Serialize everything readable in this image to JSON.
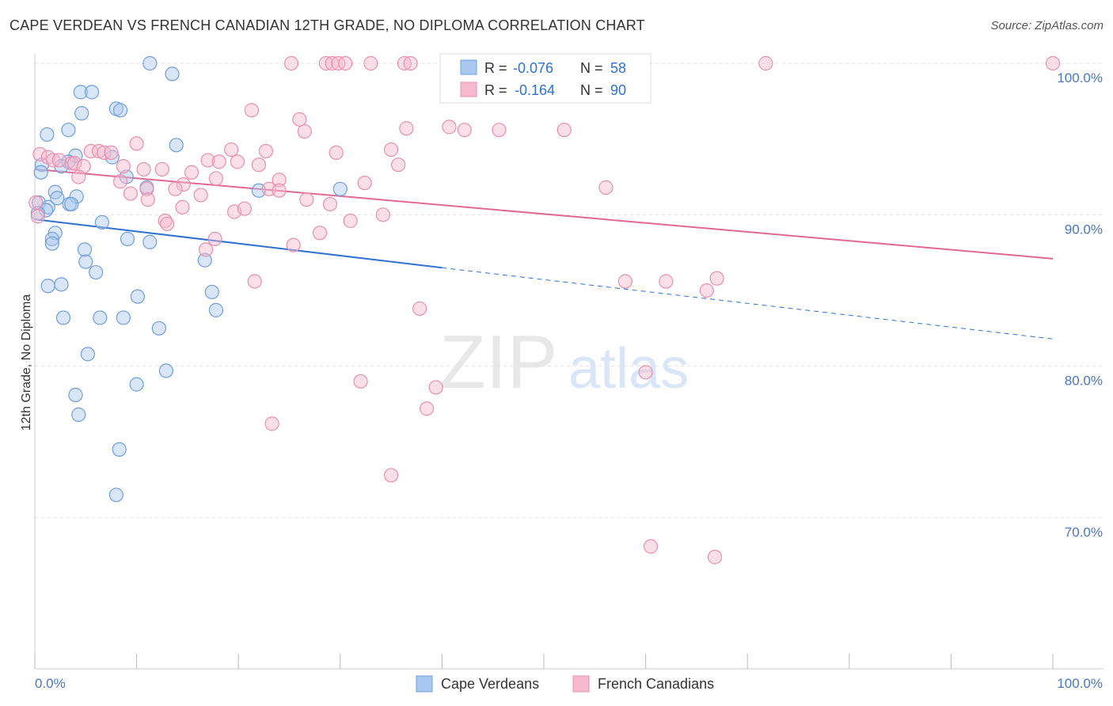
{
  "title": "CAPE VERDEAN VS FRENCH CANADIAN 12TH GRADE, NO DIPLOMA CORRELATION CHART",
  "source": "Source: ZipAtlas.com",
  "watermark": {
    "zip": "ZIP",
    "atlas": "atlas"
  },
  "colors": {
    "blue_fill": "#a9c8f0",
    "blue_stroke": "#6f9fdc",
    "blue_line": "#2f72d0",
    "pink_fill": "#f6b9cd",
    "pink_stroke": "#e98fb0",
    "pink_line": "#e06892",
    "axis_label_color": "#4a78c2",
    "grid": "#e3e3e3"
  },
  "chart_data": {
    "type": "scatter",
    "title": "CAPE VERDEAN VS FRENCH CANADIAN 12TH GRADE, NO DIPLOMA CORRELATION CHART",
    "xlabel": "",
    "ylabel": "12th Grade, No Diploma",
    "xlim": [
      0,
      100
    ],
    "ylim": [
      60,
      100
    ],
    "x_tick_labels": [
      "0.0%",
      "100.0%"
    ],
    "y_ticks": [
      {
        "value": 100,
        "label": "100.0%"
      },
      {
        "value": 90,
        "label": "90.0%"
      },
      {
        "value": 80,
        "label": "80.0%"
      },
      {
        "value": 70,
        "label": "70.0%"
      }
    ],
    "grid": true,
    "legend_position": "bottom",
    "stats_legend": [
      {
        "r_label": "R =",
        "r_value": "-0.076",
        "n_label": "N =",
        "n_value": "58"
      },
      {
        "r_label": "R =",
        "r_value": "-0.164",
        "n_label": "N =",
        "n_value": "90"
      }
    ],
    "series": [
      {
        "name": "Cape Verdeans",
        "color": "blue",
        "trend": {
          "x0": 0,
          "y0": 89.7,
          "x1": 40,
          "y1": 86.5,
          "dash_x1": 100,
          "dash_y1": 81.8
        },
        "points": [
          [
            11.3,
            100.0
          ],
          [
            13.5,
            99.3
          ],
          [
            4.5,
            98.1
          ],
          [
            5.6,
            98.1
          ],
          [
            8.0,
            97.0
          ],
          [
            8.4,
            96.9
          ],
          [
            4.6,
            96.7
          ],
          [
            1.2,
            95.3
          ],
          [
            3.3,
            95.6
          ],
          [
            13.9,
            94.6
          ],
          [
            4.0,
            93.9
          ],
          [
            7.6,
            93.8
          ],
          [
            3.3,
            93.5
          ],
          [
            0.7,
            93.3
          ],
          [
            2.6,
            93.2
          ],
          [
            0.6,
            92.8
          ],
          [
            9.0,
            92.5
          ],
          [
            11.0,
            91.8
          ],
          [
            2.0,
            91.5
          ],
          [
            22.0,
            91.6
          ],
          [
            30.0,
            91.7
          ],
          [
            4.1,
            91.2
          ],
          [
            2.2,
            91.1
          ],
          [
            0.4,
            90.8
          ],
          [
            3.4,
            90.7
          ],
          [
            3.6,
            90.7
          ],
          [
            1.3,
            90.5
          ],
          [
            1.1,
            90.3
          ],
          [
            0.3,
            90.1
          ],
          [
            6.6,
            89.5
          ],
          [
            2.0,
            88.8
          ],
          [
            1.7,
            88.4
          ],
          [
            1.7,
            88.1
          ],
          [
            9.1,
            88.4
          ],
          [
            11.3,
            88.2
          ],
          [
            4.9,
            87.7
          ],
          [
            5.0,
            86.9
          ],
          [
            16.7,
            87.0
          ],
          [
            6.0,
            86.2
          ],
          [
            1.3,
            85.3
          ],
          [
            2.6,
            85.4
          ],
          [
            17.4,
            84.9
          ],
          [
            10.1,
            84.6
          ],
          [
            17.8,
            83.7
          ],
          [
            2.8,
            83.2
          ],
          [
            6.4,
            83.2
          ],
          [
            8.7,
            83.2
          ],
          [
            12.2,
            82.5
          ],
          [
            5.2,
            80.8
          ],
          [
            12.9,
            79.7
          ],
          [
            10.0,
            78.8
          ],
          [
            4.0,
            78.1
          ],
          [
            4.3,
            76.8
          ],
          [
            8.3,
            74.5
          ],
          [
            8.0,
            71.5
          ]
        ]
      },
      {
        "name": "French Canadians",
        "color": "pink",
        "trend": {
          "x0": 0,
          "y0": 93.0,
          "x1": 100,
          "y1": 87.1
        },
        "points": [
          [
            25.2,
            100.0
          ],
          [
            28.6,
            100.0
          ],
          [
            29.2,
            100.0
          ],
          [
            29.8,
            100.0
          ],
          [
            30.5,
            100.0
          ],
          [
            33.0,
            100.0
          ],
          [
            36.3,
            100.0
          ],
          [
            36.9,
            100.0
          ],
          [
            48.2,
            100.0
          ],
          [
            71.8,
            100.0
          ],
          [
            100.0,
            100.0
          ],
          [
            21.3,
            96.9
          ],
          [
            26.0,
            96.3
          ],
          [
            26.5,
            95.5
          ],
          [
            36.5,
            95.7
          ],
          [
            40.7,
            95.8
          ],
          [
            42.2,
            95.6
          ],
          [
            10.0,
            94.7
          ],
          [
            19.3,
            94.3
          ],
          [
            22.7,
            94.2
          ],
          [
            29.6,
            94.1
          ],
          [
            35.0,
            94.3
          ],
          [
            0.5,
            94.0
          ],
          [
            5.5,
            94.2
          ],
          [
            6.3,
            94.2
          ],
          [
            6.8,
            94.1
          ],
          [
            7.5,
            94.1
          ],
          [
            1.3,
            93.8
          ],
          [
            3.6,
            93.4
          ],
          [
            3.9,
            93.4
          ],
          [
            1.8,
            93.6
          ],
          [
            2.4,
            93.6
          ],
          [
            4.8,
            93.2
          ],
          [
            17.0,
            93.6
          ],
          [
            18.1,
            93.5
          ],
          [
            19.9,
            93.5
          ],
          [
            22.0,
            93.3
          ],
          [
            35.7,
            93.3
          ],
          [
            8.7,
            93.2
          ],
          [
            10.7,
            93.0
          ],
          [
            12.5,
            93.0
          ],
          [
            15.4,
            92.8
          ],
          [
            4.3,
            92.5
          ],
          [
            14.6,
            92.0
          ],
          [
            17.8,
            92.4
          ],
          [
            8.4,
            92.2
          ],
          [
            24.0,
            92.3
          ],
          [
            32.4,
            92.1
          ],
          [
            23.0,
            91.7
          ],
          [
            24.0,
            91.6
          ],
          [
            11.0,
            91.7
          ],
          [
            9.4,
            91.4
          ],
          [
            13.8,
            91.7
          ],
          [
            16.3,
            91.3
          ],
          [
            11.1,
            91.0
          ],
          [
            26.7,
            91.0
          ],
          [
            0.1,
            90.8
          ],
          [
            29.0,
            90.7
          ],
          [
            56.1,
            91.8
          ],
          [
            14.5,
            90.5
          ],
          [
            19.6,
            90.2
          ],
          [
            20.6,
            90.4
          ],
          [
            34.2,
            90.0
          ],
          [
            12.8,
            89.6
          ],
          [
            13.0,
            89.4
          ],
          [
            31.0,
            89.6
          ],
          [
            0.3,
            89.9
          ],
          [
            28.0,
            88.8
          ],
          [
            17.7,
            88.4
          ],
          [
            25.4,
            88.0
          ],
          [
            16.8,
            87.7
          ],
          [
            21.6,
            85.6
          ],
          [
            52.0,
            95.6
          ],
          [
            45.6,
            95.6
          ],
          [
            62.0,
            85.6
          ],
          [
            58.0,
            85.6
          ],
          [
            67.0,
            85.8
          ],
          [
            66.0,
            85.0
          ],
          [
            37.8,
            83.8
          ],
          [
            32.0,
            79.0
          ],
          [
            39.4,
            78.6
          ],
          [
            60.0,
            79.6
          ],
          [
            38.5,
            77.2
          ],
          [
            23.3,
            76.2
          ],
          [
            35.0,
            72.8
          ],
          [
            60.5,
            68.1
          ],
          [
            66.8,
            67.4
          ]
        ]
      }
    ]
  },
  "legend": {
    "items": [
      {
        "label": "Cape Verdeans"
      },
      {
        "label": "French Canadians"
      }
    ]
  }
}
